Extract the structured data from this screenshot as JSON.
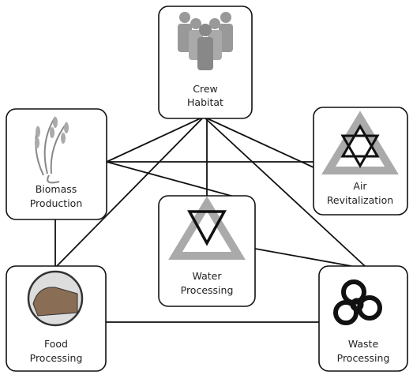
{
  "nodes": [
    {
      "id": "crew",
      "label": [
        "Crew",
        "Habitat"
      ]
    },
    {
      "id": "biomass",
      "label": [
        "Biomass",
        "Production"
      ]
    },
    {
      "id": "air",
      "label": [
        "Air",
        "Revitalization"
      ]
    },
    {
      "id": "water",
      "label": [
        "Water",
        "Processing"
      ]
    },
    {
      "id": "food",
      "label": [
        "Food",
        "Processing"
      ]
    },
    {
      "id": "waste",
      "label": [
        "Waste",
        "Processing"
      ]
    }
  ]
}
